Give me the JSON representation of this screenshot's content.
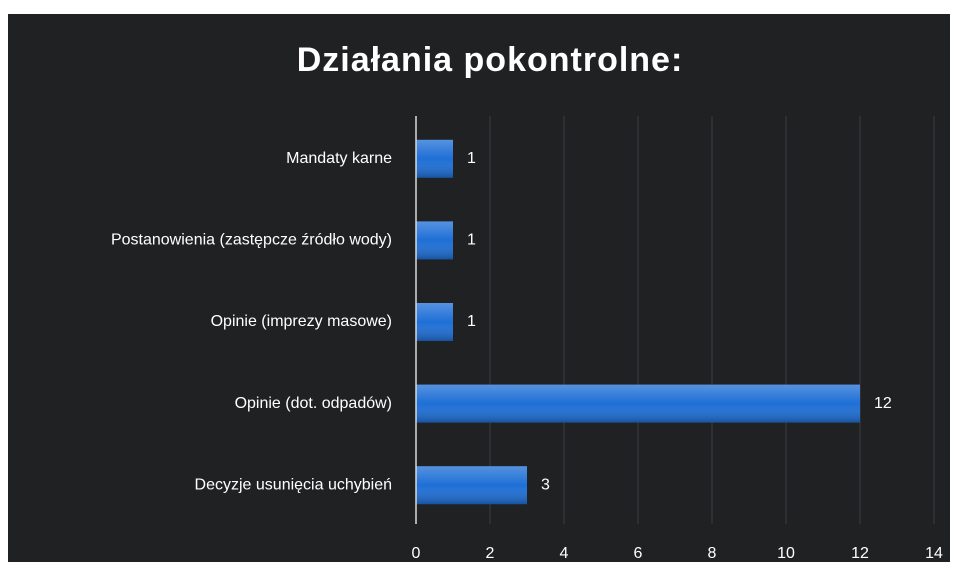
{
  "chart_data": {
    "type": "bar",
    "orientation": "horizontal",
    "title": "Działania pokontrolne:",
    "categories": [
      "Mandaty karne",
      "Postanowienia (zastępcze źródło wody)",
      "Opinie (imprezy masowe)",
      "Opinie (dot. odpadów)",
      "Decyzje usunięcia uchybień"
    ],
    "values": [
      1,
      1,
      1,
      12,
      3
    ],
    "color": "#1e6fd6",
    "xlim": [
      0,
      14
    ],
    "xticks": [
      0,
      2,
      4,
      6,
      8,
      10,
      12,
      14
    ],
    "grid": true
  }
}
